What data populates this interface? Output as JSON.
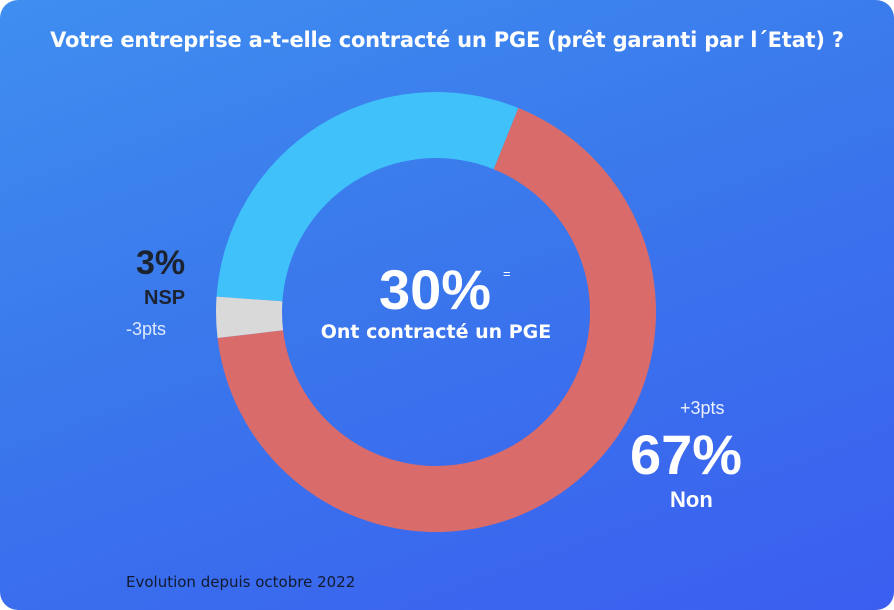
{
  "title": "Votre entreprise a-t-elle contracté un PGE (prêt garanti par l´Etat) ?",
  "footnote": "Evolution depuis octobre 2022",
  "center": {
    "value_text": "30%",
    "change": "=",
    "label": "Ont contracté un PGE"
  },
  "nsp": {
    "value_text": "3%",
    "label": "NSP",
    "change": "-3pts"
  },
  "non": {
    "value_text": "67%",
    "label": "Non",
    "change": "+3pts"
  },
  "colors": {
    "oui": "#40c1fa",
    "non": "#da6b6b",
    "nsp": "#d9d9d9",
    "background": "#3b7af0"
  },
  "chart_data": {
    "type": "pie",
    "title": "Votre entreprise a-t-elle contracté un PGE (prêt garanti par l´Etat) ?",
    "categories": [
      "Ont contracté un PGE",
      "Non",
      "NSP"
    ],
    "values": [
      30,
      67,
      3
    ],
    "changes": [
      "=",
      "+3pts",
      "-3pts"
    ],
    "unit": "%",
    "donut": true
  }
}
